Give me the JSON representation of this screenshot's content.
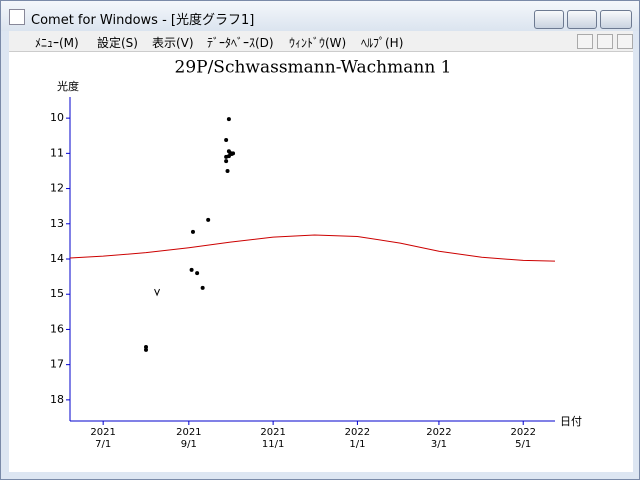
{
  "window": {
    "title": "Comet for Windows - [光度グラフ1]"
  },
  "menu": [
    "ﾒﾆｭｰ(M)",
    "設定(S)",
    "表示(V)",
    "ﾃﾞｰﾀﾍﾞｰｽ(D)",
    "ｳｨﾝﾄﾞｳ(W)",
    "ﾍﾙﾌﾟ(H)"
  ],
  "chart_data": {
    "type": "scatter",
    "title": "29P/Schwassmann-Wachmann 1",
    "ylabel": "光度",
    "xlabel": "日付",
    "xlim": [
      "2021-06-07",
      "2022-05-24"
    ],
    "ylim": [
      18.6,
      9.4
    ],
    "yticks": [
      10,
      11,
      12,
      13,
      14,
      15,
      16,
      17,
      18
    ],
    "xticks": [
      {
        "value": "2021-07-01",
        "label": [
          "2021",
          "7/1"
        ]
      },
      {
        "value": "2021-09-01",
        "label": [
          "2021",
          "9/1"
        ]
      },
      {
        "value": "2021-11-01",
        "label": [
          "2021",
          "11/1"
        ]
      },
      {
        "value": "2022-01-01",
        "label": [
          "2022",
          "1/1"
        ]
      },
      {
        "value": "2022-03-01",
        "label": [
          "2022",
          "3/1"
        ]
      },
      {
        "value": "2022-05-01",
        "label": [
          "2022",
          "5/1"
        ]
      }
    ],
    "axis_color": "#0000cc",
    "series": [
      {
        "marker": "dot",
        "color": "#000000",
        "x": [
          "2021-08-01",
          "2021-08-01",
          "2021-09-03",
          "2021-09-07",
          "2021-09-11",
          "2021-09-04",
          "2021-09-15",
          "2021-09-28",
          "2021-09-30",
          "2021-09-28",
          "2021-09-28",
          "2021-09-29",
          "2021-09-30",
          "2021-10-01",
          "2021-10-02",
          "2021-10-03",
          "2021-09-30"
        ],
        "values": [
          16.58,
          16.5,
          14.31,
          14.4,
          14.82,
          13.23,
          12.89,
          10.62,
          10.03,
          11.1,
          11.22,
          11.5,
          10.94,
          10.99,
          11.02,
          11.0,
          11.08
        ]
      },
      {
        "marker": "v",
        "color": "#000000",
        "x": [
          "2021-08-09"
        ],
        "values": [
          14.94
        ]
      },
      {
        "marker": "line",
        "color": "#cc0000",
        "x": [
          "2021-06-07",
          "2021-07-01",
          "2021-08-01",
          "2021-09-01",
          "2021-10-01",
          "2021-11-01",
          "2021-12-01",
          "2022-01-01",
          "2022-02-01",
          "2022-03-01",
          "2022-04-01",
          "2022-05-01",
          "2022-05-24"
        ],
        "values": [
          13.97,
          13.92,
          13.82,
          13.68,
          13.52,
          13.38,
          13.32,
          13.36,
          13.55,
          13.78,
          13.95,
          14.04,
          14.06
        ]
      }
    ]
  }
}
